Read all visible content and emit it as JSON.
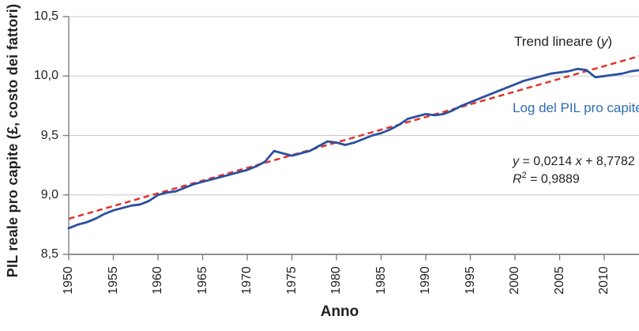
{
  "colors": {
    "series_blue": "#2b509f",
    "label_blue": "#2e6db4",
    "trend_red": "#e0352b",
    "grid_gray": "#c8c8c8",
    "axis_gray": "#818181",
    "text_dark": "#231f20",
    "background": "#ffffff"
  },
  "labels": {
    "ylabel": "PIL reale pro capite (£, costo dei fattori)",
    "xlabel": "Anno",
    "trend_pre": "Trend lineare (",
    "trend_var": "y",
    "trend_post": ")",
    "series_label": "Log del PIL pro capite",
    "eq_var1": "y",
    "eq_mid": " = 0,0214 ",
    "eq_var2": "x",
    "eq_post": " + 8,7782",
    "r2_var": "R",
    "r2_sup": "2",
    "r2_post": " = 0,9889"
  },
  "chart_data": {
    "type": "line",
    "title": "",
    "xlabel": "Anno",
    "ylabel": "PIL reale pro capite (£, costo dei fattori)",
    "xlim": [
      1950,
      2014.6
    ],
    "ylim": [
      8.5,
      10.5
    ],
    "grid": "horizontal",
    "legend_position": "text annotations inside plot, right side",
    "yticks": {
      "values": [
        10.5,
        10.0,
        9.5,
        9.0,
        8.5
      ],
      "labels": [
        "10,5",
        "10,0",
        "9,5",
        "9,0",
        "8,5"
      ]
    },
    "xticks": {
      "values": [
        1950,
        1955,
        1960,
        1965,
        1970,
        1975,
        1980,
        1985,
        1990,
        1995,
        2000,
        2005,
        2010
      ],
      "labels": [
        "1950",
        "1955",
        "1960",
        "1965",
        "1970",
        "1975",
        "1980",
        "1985",
        "1990",
        "1995",
        "2000",
        "2005",
        "2010"
      ]
    },
    "series": [
      {
        "name": "Log del PIL pro capite",
        "style": "solid",
        "color": "#2b509f",
        "x_start": 1950,
        "x_step": 1,
        "values": [
          8.72,
          8.75,
          8.77,
          8.8,
          8.84,
          8.87,
          8.89,
          8.91,
          8.92,
          8.95,
          9.0,
          9.02,
          9.03,
          9.06,
          9.09,
          9.11,
          9.13,
          9.15,
          9.17,
          9.19,
          9.21,
          9.24,
          9.28,
          9.37,
          9.35,
          9.33,
          9.35,
          9.37,
          9.41,
          9.45,
          9.44,
          9.42,
          9.44,
          9.47,
          9.5,
          9.52,
          9.55,
          9.59,
          9.64,
          9.66,
          9.68,
          9.67,
          9.68,
          9.71,
          9.75,
          9.78,
          9.81,
          9.84,
          9.87,
          9.9,
          9.93,
          9.96,
          9.98,
          10.0,
          10.02,
          10.03,
          10.04,
          10.06,
          10.05,
          9.99,
          10.0,
          10.01,
          10.02,
          10.04,
          10.05
        ]
      },
      {
        "name": "Trend lineare (y)",
        "style": "dashed",
        "color": "#e0352b",
        "slope": 0.0214,
        "intercept": 8.7782,
        "x_index_origin_year": 1949,
        "equation": "y = 0,0214 x + 8,7782",
        "r_squared": "R² = 0,9889"
      }
    ]
  }
}
